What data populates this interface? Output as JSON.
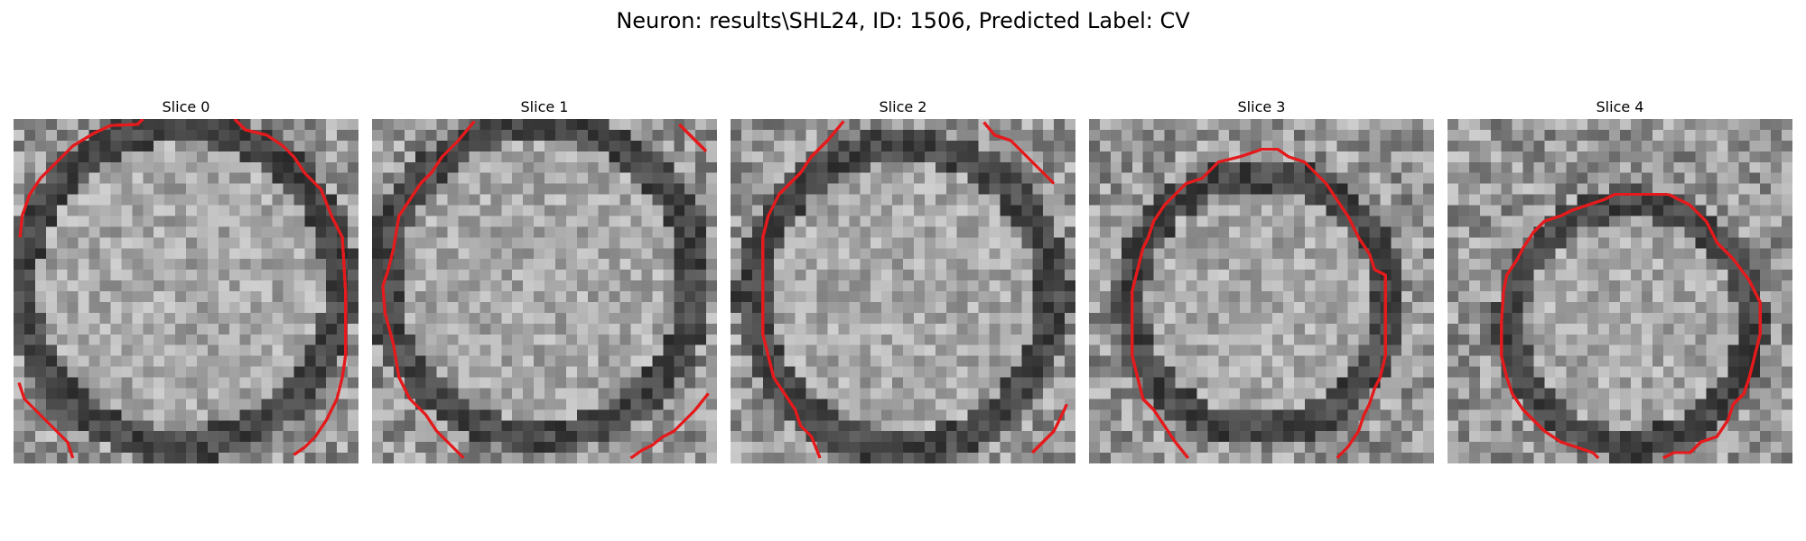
{
  "title": "Neuron: results\\SHL24, ID: 1506, Predicted Label: CV",
  "slices": [
    {
      "label": "Slice 0"
    },
    {
      "label": "Slice 1"
    },
    {
      "label": "Slice 2"
    },
    {
      "label": "Slice 3"
    },
    {
      "label": "Slice 4"
    }
  ],
  "colors": {
    "contour": "#e41a1c",
    "colormap": "grayscale"
  },
  "image_grid": "32x32 grayscale microscopy patches"
}
